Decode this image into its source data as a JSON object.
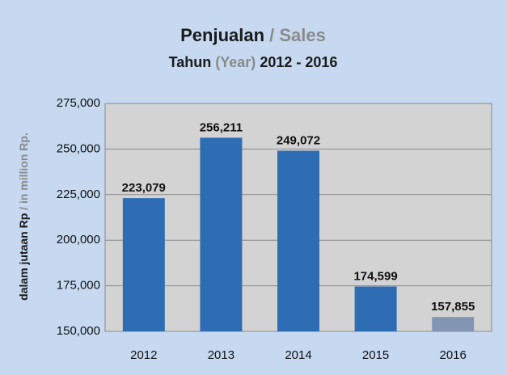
{
  "chart_data": {
    "type": "bar",
    "title_parts": [
      "Penjualan",
      "/ Sales"
    ],
    "subtitle_parts": [
      "Tahun",
      "(Year)",
      "2012 - 2016"
    ],
    "ylabel_parts": [
      "dalam jutaan Rp",
      "/ in million Rp."
    ],
    "categories": [
      "2012",
      "2013",
      "2014",
      "2015",
      "2016"
    ],
    "values": [
      223079,
      256211,
      249072,
      174599,
      157855
    ],
    "value_labels": [
      "223,079",
      "256,211",
      "249,072",
      "174,599",
      "157,855"
    ],
    "colors": [
      "#2e6db4",
      "#2e6db4",
      "#2e6db4",
      "#2e6db4",
      "#8296b4"
    ],
    "ylim": [
      150000,
      275000
    ],
    "yticks": [
      {
        "value": 150000,
        "label": "150,000"
      },
      {
        "value": 175000,
        "label": "175,000"
      },
      {
        "value": 200000,
        "label": "200,000"
      },
      {
        "value": 225000,
        "label": "225,000"
      },
      {
        "value": 250000,
        "label": "250,000"
      },
      {
        "value": 275000,
        "label": "275,000"
      }
    ],
    "grid": true
  }
}
